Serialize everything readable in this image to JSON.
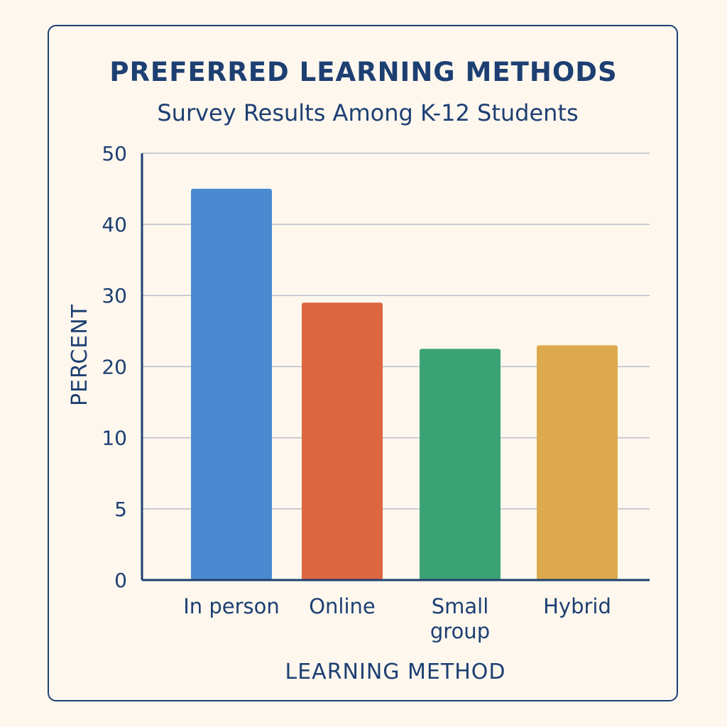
{
  "chart_data": {
    "type": "bar",
    "title": "PREFERRED LEARNING METHODS",
    "subtitle": "Survey Results Among K-12 Students",
    "xlabel": "LEARNING METHOD",
    "ylabel": "PERCENT",
    "categories": [
      "In person",
      "Online",
      "Small group",
      "Hybrid"
    ],
    "category_lines": [
      [
        "In person"
      ],
      [
        "Online"
      ],
      [
        "Small",
        "group"
      ],
      [
        "Hybrid"
      ]
    ],
    "values": [
      45,
      29,
      22.5,
      23
    ],
    "yticks": [
      "0",
      "5",
      "10",
      "20",
      "30",
      "40",
      "50"
    ],
    "ylim": [
      0,
      50
    ],
    "grid": true,
    "legend": "none",
    "colors": [
      "#4a8ad0",
      "#dd6741",
      "#3ba276",
      "#dcaa4d"
    ]
  }
}
